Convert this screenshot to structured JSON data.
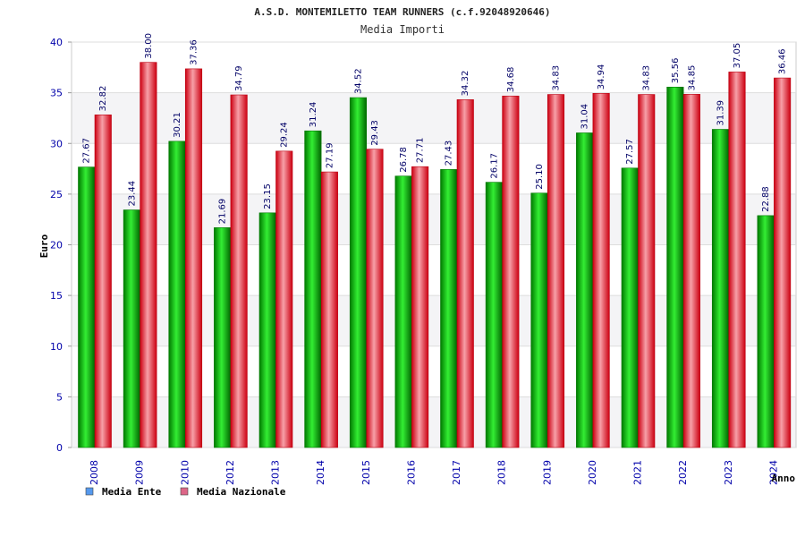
{
  "chart_data": {
    "type": "bar",
    "title": "A.S.D. MONTEMILETTO TEAM RUNNERS (c.f.92048920646)",
    "subtitle": "Media Importi",
    "xlabel": "Anno",
    "ylabel": "Euro",
    "ylim": [
      0,
      40
    ],
    "yticks": [
      0,
      5,
      10,
      15,
      20,
      25,
      30,
      35,
      40
    ],
    "grid": true,
    "legend_position": "bottom-left",
    "categories": [
      "2008",
      "2009",
      "2010",
      "2012",
      "2013",
      "2014",
      "2015",
      "2016",
      "2017",
      "2018",
      "2019",
      "2020",
      "2021",
      "2022",
      "2023",
      "2024"
    ],
    "series": [
      {
        "name": "Media Ente",
        "color": "#00bb00",
        "legend_color": "#5599ee",
        "values": [
          27.67,
          23.44,
          30.21,
          21.69,
          23.15,
          31.24,
          34.52,
          26.78,
          27.43,
          26.17,
          25.1,
          31.04,
          27.57,
          35.56,
          31.39,
          22.88
        ],
        "labels": [
          "27.67",
          "23.44",
          "30.21",
          "21.69",
          "23.15",
          "31.24",
          "34.52",
          "26.78",
          "27.43",
          "26.17",
          "25.10",
          "31.04",
          "27.57",
          "35.56",
          "31.39",
          "22.88"
        ]
      },
      {
        "name": "Media Nazionale",
        "color": "#ee1122",
        "legend_color": "#dd6688",
        "values": [
          32.82,
          38.0,
          37.36,
          34.79,
          29.24,
          27.19,
          29.43,
          27.71,
          34.32,
          34.68,
          34.83,
          34.94,
          34.83,
          34.85,
          37.05,
          36.46
        ],
        "labels": [
          "32.82",
          "38.00",
          "37.36",
          "34.79",
          "29.24",
          "27.19",
          "29.43",
          "27.71",
          "34.32",
          "34.68",
          "34.83",
          "34.94",
          "34.83",
          "34.85",
          "37.05",
          "36.46"
        ]
      }
    ]
  }
}
